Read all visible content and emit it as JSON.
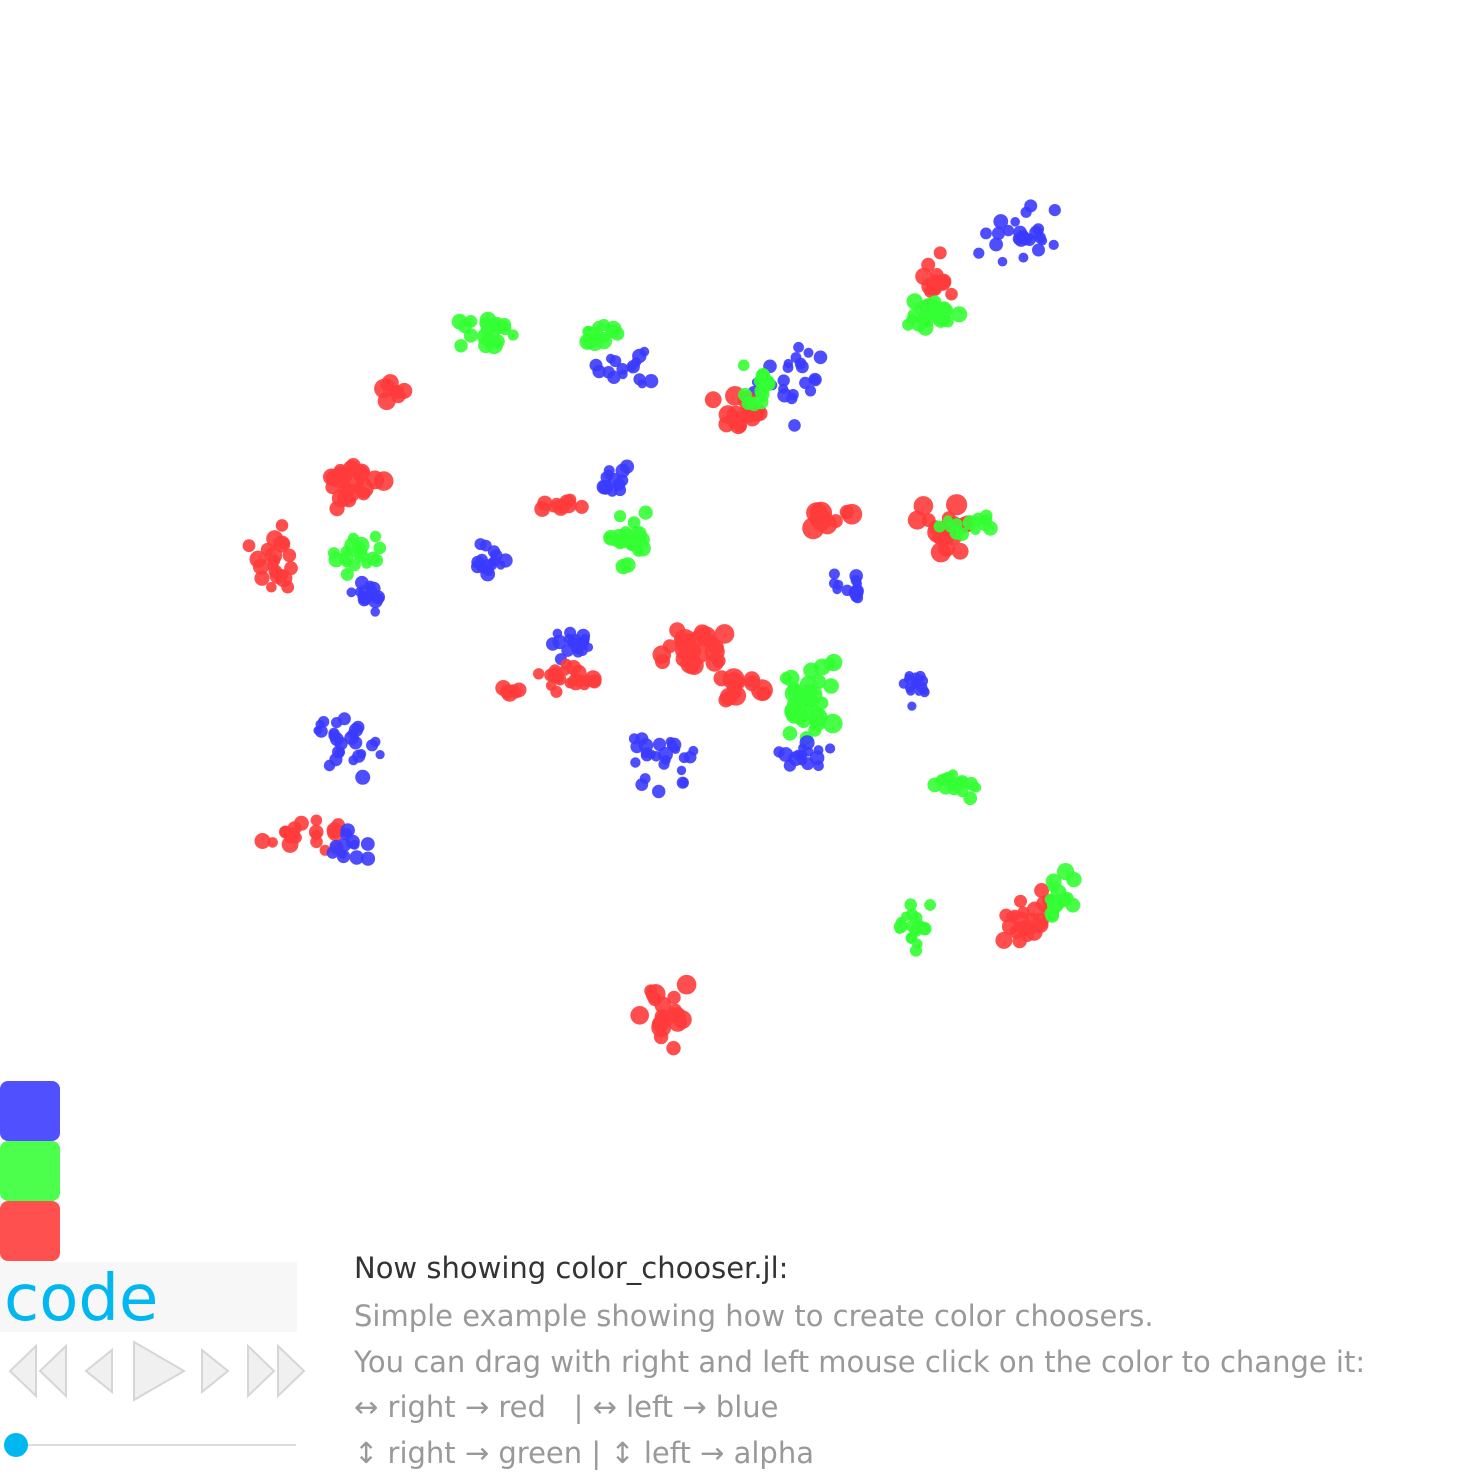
{
  "colors": {
    "blue": "#3b3bff",
    "green": "#33ff33",
    "red": "#ff3b3b",
    "accent": "#00b7f0",
    "heading_text": "#333333",
    "body_text": "#999999"
  },
  "swatches": [
    {
      "name": "blue",
      "color": "#5050ff"
    },
    {
      "name": "green",
      "color": "#4dff4d"
    },
    {
      "name": "red",
      "color": "#ff5050"
    }
  ],
  "code_label": "code",
  "playback": {
    "icons": [
      "first-icon",
      "prev-icon",
      "play-icon",
      "next-icon",
      "last-icon"
    ],
    "slider_value": 0
  },
  "description": {
    "heading": "Now showing color_chooser.jl:",
    "lines": [
      "Simple example showing how to create color choosers.",
      "You can drag with right and left mouse click on the color to change it:",
      "↔ right → red   | ↔ left → blue",
      "↕ right → green | ↕ left → alpha"
    ]
  }
}
